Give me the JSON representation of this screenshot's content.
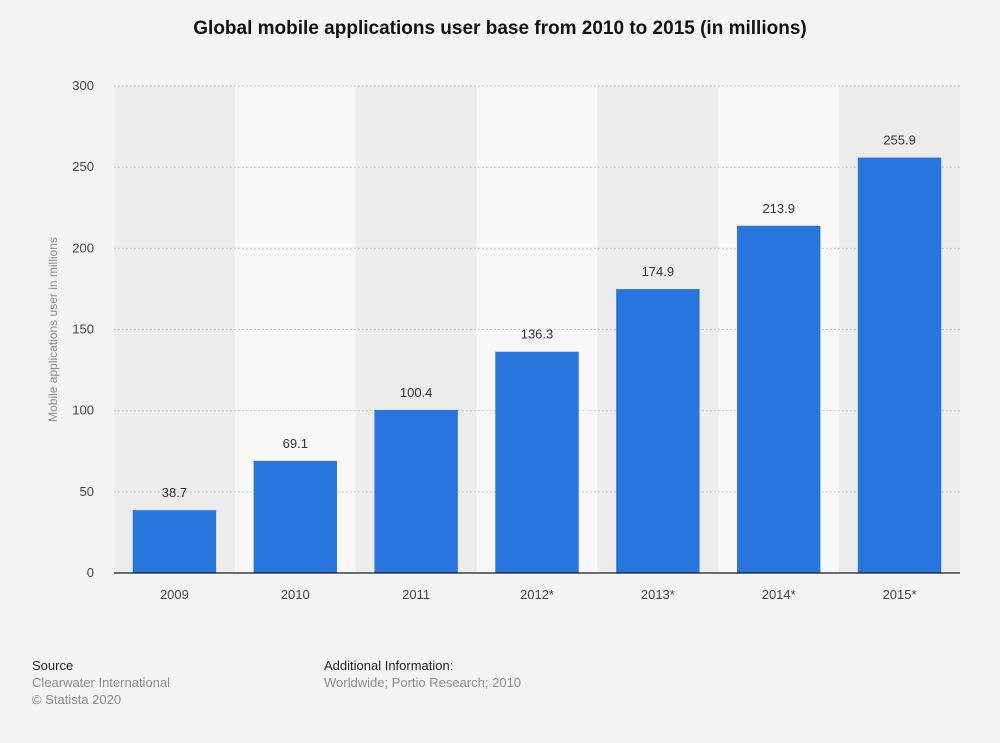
{
  "chart_data": {
    "type": "bar",
    "title": "Global mobile applications user base from 2010 to 2015 (in millions)",
    "xlabel": "",
    "ylabel": "Mobile applications user in millions",
    "categories": [
      "2009",
      "2010",
      "2011",
      "2012*",
      "2013*",
      "2014*",
      "2015*"
    ],
    "values": [
      38.7,
      69.1,
      100.4,
      136.3,
      174.9,
      213.9,
      255.9
    ],
    "data_labels": [
      "38.7",
      "69.1",
      "100.4",
      "136.3",
      "174.9",
      "213.9",
      "255.9"
    ],
    "ylim": [
      0,
      300
    ],
    "yticks": [
      0,
      50,
      100,
      150,
      200,
      250,
      300
    ],
    "grid": true,
    "bar_color": "#2876dd"
  },
  "footer": {
    "source_heading": "Source",
    "source_lines": [
      "Clearwater International",
      "© Statista 2020"
    ],
    "info_heading": "Additional Information:",
    "info_text": "Worldwide; Portio Research; 2010"
  }
}
